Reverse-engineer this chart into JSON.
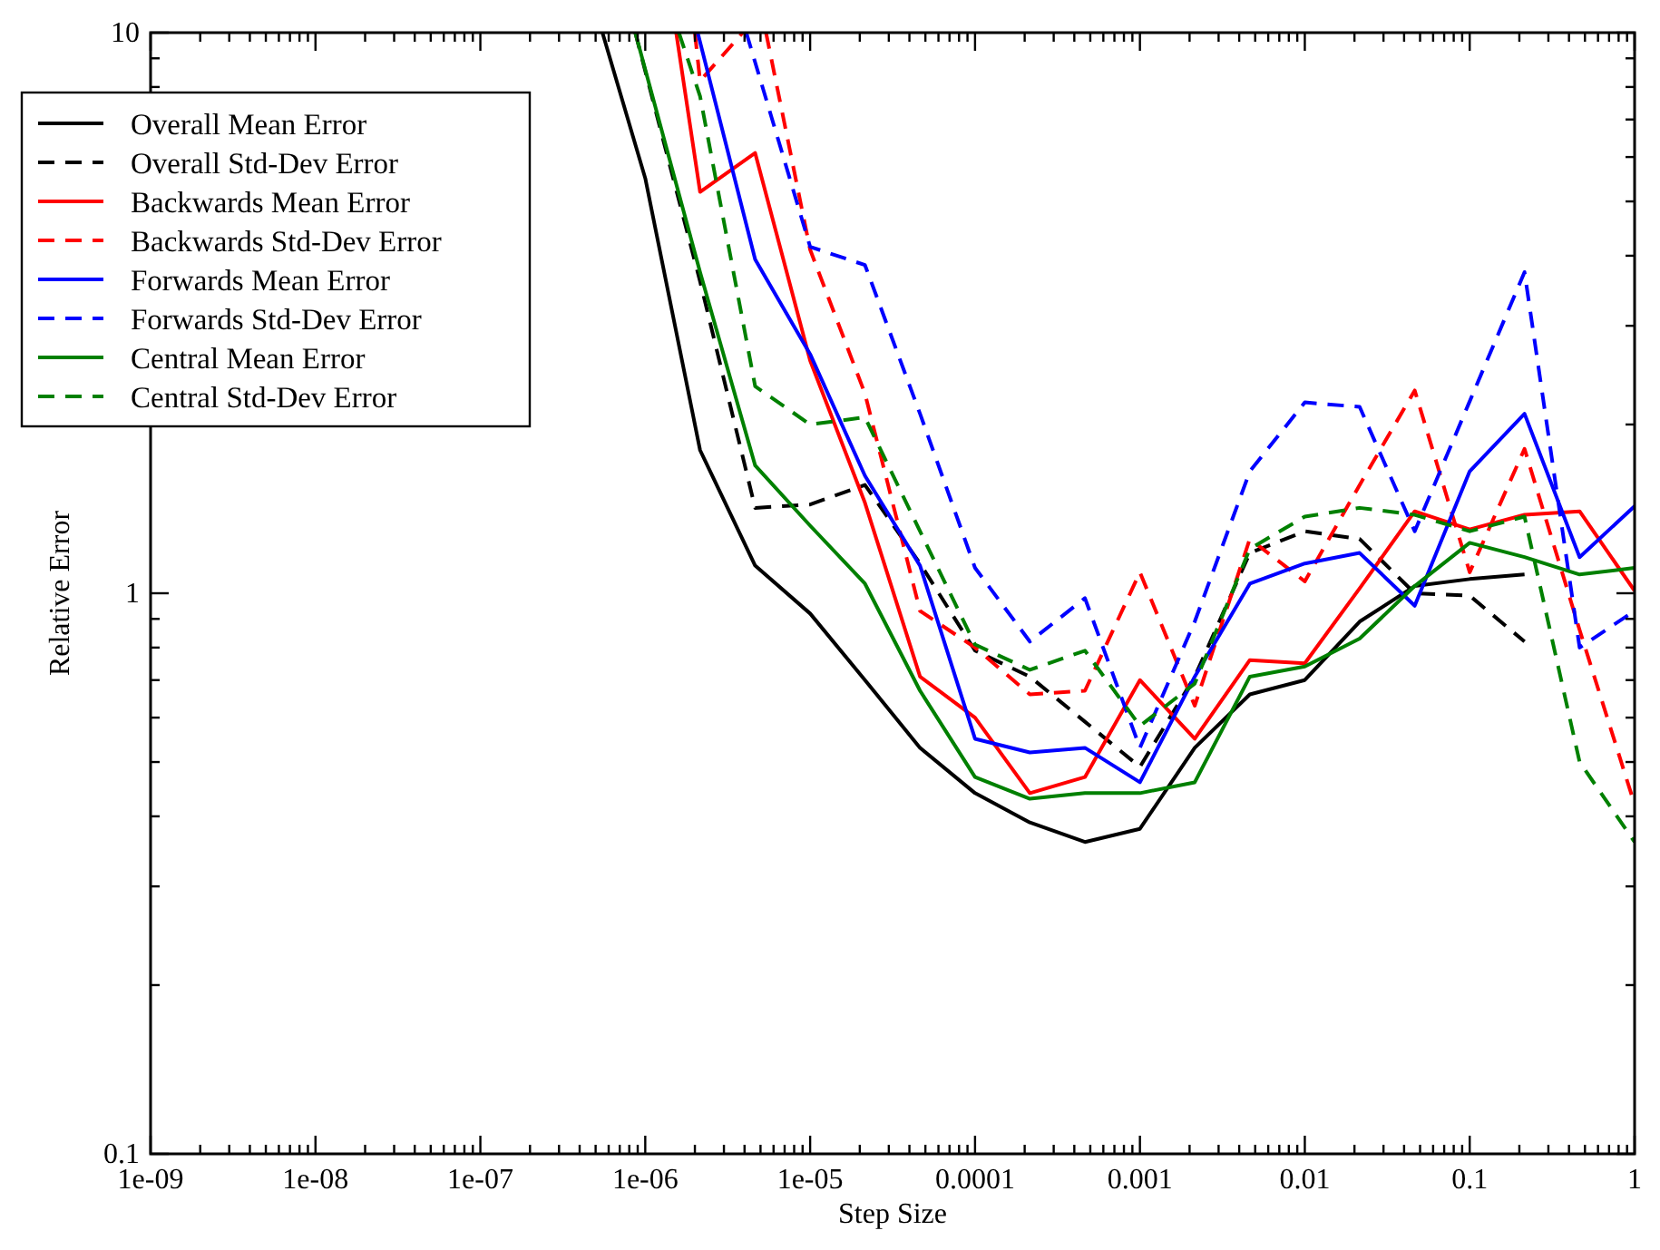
{
  "chart_data": {
    "type": "line",
    "xlabel": "Step Size",
    "ylabel": "Relative Error",
    "log": "xy",
    "legend": "top left",
    "grid": false,
    "xlim": [
      1e-09,
      1
    ],
    "ylim": [
      0.1,
      10
    ],
    "xticks": [
      {
        "value": 1e-09,
        "label": "1e-09"
      },
      {
        "value": 2e-09,
        "label": null
      },
      {
        "value": 3e-09,
        "label": null
      },
      {
        "value": 4e-09,
        "label": null
      },
      {
        "value": 5e-09,
        "label": null
      },
      {
        "value": 6e-09,
        "label": null
      },
      {
        "value": 7e-09,
        "label": null
      },
      {
        "value": 8e-09,
        "label": null
      },
      {
        "value": 9e-09,
        "label": null
      },
      {
        "value": 1e-08,
        "label": "1e-08"
      },
      {
        "value": 2e-08,
        "label": null
      },
      {
        "value": 3e-08,
        "label": null
      },
      {
        "value": 4e-08,
        "label": null
      },
      {
        "value": 5e-08,
        "label": null
      },
      {
        "value": 6e-08,
        "label": null
      },
      {
        "value": 7e-08,
        "label": null
      },
      {
        "value": 8e-08,
        "label": null
      },
      {
        "value": 9e-08,
        "label": null
      },
      {
        "value": 1e-07,
        "label": "1e-07"
      },
      {
        "value": 2e-07,
        "label": null
      },
      {
        "value": 3e-07,
        "label": null
      },
      {
        "value": 4e-07,
        "label": null
      },
      {
        "value": 5e-07,
        "label": null
      },
      {
        "value": 6e-07,
        "label": null
      },
      {
        "value": 7e-07,
        "label": null
      },
      {
        "value": 8e-07,
        "label": null
      },
      {
        "value": 9e-07,
        "label": null
      },
      {
        "value": 1e-06,
        "label": "1e-06"
      },
      {
        "value": 2e-06,
        "label": null
      },
      {
        "value": 3e-06,
        "label": null
      },
      {
        "value": 4e-06,
        "label": null
      },
      {
        "value": 5e-06,
        "label": null
      },
      {
        "value": 6e-06,
        "label": null
      },
      {
        "value": 7e-06,
        "label": null
      },
      {
        "value": 8e-06,
        "label": null
      },
      {
        "value": 9e-06,
        "label": null
      },
      {
        "value": 1e-05,
        "label": "1e-05"
      },
      {
        "value": 2e-05,
        "label": null
      },
      {
        "value": 3e-05,
        "label": null
      },
      {
        "value": 4e-05,
        "label": null
      },
      {
        "value": 5e-05,
        "label": null
      },
      {
        "value": 6e-05,
        "label": null
      },
      {
        "value": 7e-05,
        "label": null
      },
      {
        "value": 8e-05,
        "label": null
      },
      {
        "value": 9e-05,
        "label": null
      },
      {
        "value": 0.0001,
        "label": "0.0001"
      },
      {
        "value": 0.0002,
        "label": null
      },
      {
        "value": 0.0003,
        "label": null
      },
      {
        "value": 0.0004,
        "label": null
      },
      {
        "value": 0.0005,
        "label": null
      },
      {
        "value": 0.0006,
        "label": null
      },
      {
        "value": 0.0007,
        "label": null
      },
      {
        "value": 0.0008,
        "label": null
      },
      {
        "value": 0.0009,
        "label": null
      },
      {
        "value": 0.001,
        "label": "0.001"
      },
      {
        "value": 0.002,
        "label": null
      },
      {
        "value": 0.003,
        "label": null
      },
      {
        "value": 0.004,
        "label": null
      },
      {
        "value": 0.005,
        "label": null
      },
      {
        "value": 0.006,
        "label": null
      },
      {
        "value": 0.007,
        "label": null
      },
      {
        "value": 0.008,
        "label": null
      },
      {
        "value": 0.009,
        "label": null
      },
      {
        "value": 0.01,
        "label": "0.01"
      },
      {
        "value": 0.02,
        "label": null
      },
      {
        "value": 0.03,
        "label": null
      },
      {
        "value": 0.04,
        "label": null
      },
      {
        "value": 0.05,
        "label": null
      },
      {
        "value": 0.06,
        "label": null
      },
      {
        "value": 0.07,
        "label": null
      },
      {
        "value": 0.08,
        "label": null
      },
      {
        "value": 0.09,
        "label": null
      },
      {
        "value": 0.1,
        "label": "0.1"
      },
      {
        "value": 0.2,
        "label": null
      },
      {
        "value": 0.3,
        "label": null
      },
      {
        "value": 0.4,
        "label": null
      },
      {
        "value": 0.5,
        "label": null
      },
      {
        "value": 0.6,
        "label": null
      },
      {
        "value": 0.7,
        "label": null
      },
      {
        "value": 0.8,
        "label": null
      },
      {
        "value": 0.9,
        "label": null
      },
      {
        "value": 1,
        "label": "1"
      }
    ],
    "yticks": [
      {
        "value": 0.1,
        "label": "0.1"
      },
      {
        "value": 0.2,
        "label": null
      },
      {
        "value": 0.3,
        "label": null
      },
      {
        "value": 0.4,
        "label": null
      },
      {
        "value": 0.5,
        "label": null
      },
      {
        "value": 0.6,
        "label": null
      },
      {
        "value": 0.7,
        "label": null
      },
      {
        "value": 0.8,
        "label": null
      },
      {
        "value": 0.9,
        "label": null
      },
      {
        "value": 1,
        "label": "1"
      },
      {
        "value": 2,
        "label": null
      },
      {
        "value": 3,
        "label": null
      },
      {
        "value": 4,
        "label": null
      },
      {
        "value": 5,
        "label": null
      },
      {
        "value": 6,
        "label": null
      },
      {
        "value": 7,
        "label": null
      },
      {
        "value": 8,
        "label": null
      },
      {
        "value": 9,
        "label": null
      },
      {
        "value": 10,
        "label": "10"
      }
    ],
    "series": [
      {
        "name": "Overall Mean Error",
        "color": "#000000",
        "line_style": "solid",
        "x": [
          5.5e-07,
          1e-06,
          2.15e-06,
          4.64e-06,
          1e-05,
          2.15e-05,
          4.64e-05,
          0.0001,
          0.000215,
          0.000464,
          0.001,
          0.00215,
          0.00464,
          0.01,
          0.0215,
          0.0464,
          0.1,
          0.215
        ],
        "values": [
          10,
          5.5,
          1.8,
          1.12,
          0.92,
          0.7,
          0.53,
          0.44,
          0.39,
          0.36,
          0.38,
          0.53,
          0.66,
          0.7,
          0.89,
          1.03,
          1.06,
          1.08
        ]
      },
      {
        "name": "Overall Std-Dev Error",
        "color": "#000000",
        "line_style": "dashed",
        "x": [
          8.7e-07,
          2.15e-06,
          4.64e-06,
          1e-05,
          2.15e-05,
          4.64e-05,
          0.0001,
          0.000215,
          0.000464,
          0.001,
          0.00215,
          0.00464,
          0.01,
          0.0215,
          0.0464,
          0.1,
          0.215
        ],
        "values": [
          10,
          3.6,
          1.42,
          1.44,
          1.56,
          1.13,
          0.79,
          0.71,
          0.59,
          0.49,
          0.71,
          1.18,
          1.29,
          1.25,
          1.0,
          0.99,
          0.82
        ]
      },
      {
        "name": "Backwards Mean Error",
        "color": "#ff0000",
        "line_style": "solid",
        "x": [
          1.54e-06,
          2.15e-06,
          4.64e-06,
          1e-05,
          2.15e-05,
          4.64e-05,
          0.0001,
          0.000215,
          0.000464,
          0.001,
          0.00215,
          0.00464,
          0.01,
          0.0215,
          0.0464,
          0.1,
          0.215,
          0.464,
          1
        ],
        "values": [
          10,
          5.2,
          6.1,
          2.6,
          1.45,
          0.71,
          0.6,
          0.44,
          0.47,
          0.7,
          0.55,
          0.76,
          0.75,
          1.02,
          1.4,
          1.3,
          1.38,
          1.4,
          1.01
        ]
      },
      {
        "name": "Backwards Std-Dev Error",
        "color": "#ff0000",
        "line_style": "dashed",
        "x": [
          2e-06,
          2.15e-06,
          3.9e-06,
          4.64e-06,
          5.4e-06,
          1e-05,
          2.15e-05,
          4.64e-05,
          0.0001,
          0.000215,
          0.000464,
          0.001,
          0.00215,
          0.00464,
          0.01,
          0.0215,
          0.0464,
          0.1,
          0.215,
          0.464,
          1
        ],
        "values": [
          10,
          8.2,
          10,
          null,
          10,
          4.1,
          2.27,
          0.93,
          0.8,
          0.66,
          0.67,
          1.09,
          0.63,
          1.25,
          1.05,
          1.56,
          2.3,
          1.09,
          1.81,
          0.86,
          0.42
        ]
      },
      {
        "name": "Forwards Mean Error",
        "color": "#0000ff",
        "line_style": "solid",
        "x": [
          2.08e-06,
          4.64e-06,
          1e-05,
          2.15e-05,
          4.64e-05,
          0.0001,
          0.000215,
          0.000464,
          0.001,
          0.00215,
          0.00464,
          0.01,
          0.0215,
          0.0464,
          0.1,
          0.215,
          0.464,
          1
        ],
        "values": [
          10,
          3.94,
          2.67,
          1.62,
          1.12,
          0.55,
          0.52,
          0.53,
          0.46,
          0.71,
          1.04,
          1.13,
          1.18,
          0.95,
          1.65,
          2.09,
          1.16,
          1.43
        ]
      },
      {
        "name": "Forwards Std-Dev Error",
        "color": "#0000ff",
        "line_style": "dashed",
        "x": [
          4.1e-06,
          1e-05,
          2.15e-05,
          4.64e-05,
          0.0001,
          0.000215,
          0.000464,
          0.001,
          0.00215,
          0.00464,
          0.01,
          0.0215,
          0.0464,
          0.1,
          0.215,
          0.464,
          1
        ],
        "values": [
          10,
          4.15,
          3.85,
          2.09,
          1.11,
          0.82,
          0.98,
          0.53,
          0.89,
          1.65,
          2.19,
          2.15,
          1.29,
          2.2,
          3.74,
          0.8,
          0.93
        ]
      },
      {
        "name": "Central Mean Error",
        "color": "#008000",
        "line_style": "solid",
        "x": [
          8.7e-07,
          2.15e-06,
          4.64e-06,
          1e-05,
          2.15e-05,
          4.64e-05,
          0.0001,
          0.000215,
          0.000464,
          0.001,
          0.00215,
          0.00464,
          0.01,
          0.0215,
          0.0464,
          0.1,
          0.215,
          0.464,
          1
        ],
        "values": [
          10,
          3.74,
          1.69,
          1.32,
          1.04,
          0.67,
          0.47,
          0.43,
          0.44,
          0.44,
          0.46,
          0.71,
          0.74,
          0.83,
          1.03,
          1.23,
          1.16,
          1.08,
          1.11
        ]
      },
      {
        "name": "Central Std-Dev Error",
        "color": "#008000",
        "line_style": "dashed",
        "x": [
          1.6e-06,
          2.15e-06,
          4.64e-06,
          1e-05,
          2.15e-05,
          4.64e-05,
          0.0001,
          0.000215,
          0.000464,
          0.001,
          0.00215,
          0.00464,
          0.01,
          0.0215,
          0.0464,
          0.1,
          0.215,
          0.464,
          1
        ],
        "values": [
          10,
          7.7,
          2.34,
          2.0,
          2.06,
          1.29,
          0.81,
          0.73,
          0.79,
          0.58,
          0.69,
          1.2,
          1.37,
          1.42,
          1.38,
          1.29,
          1.37,
          0.5,
          0.36
        ]
      }
    ]
  }
}
